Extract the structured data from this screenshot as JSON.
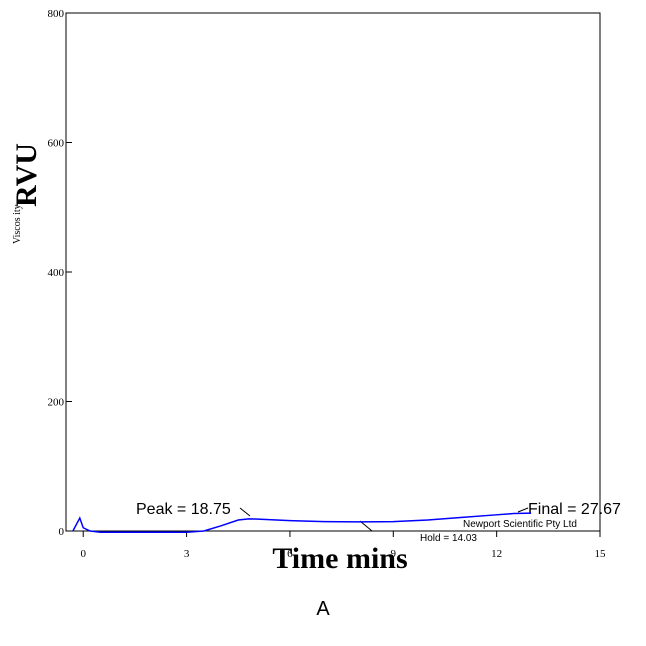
{
  "chart_data": {
    "type": "line",
    "y_label_small": "Viscos ity",
    "y_label": "RVU",
    "x_label": "Time mins",
    "caption": "A",
    "annotations": [
      "Peak = 18.75",
      "Final = 27.67",
      "Hold = 14.03",
      "Newport Scientific Pty Ltd"
    ],
    "x": [
      -0.3,
      -0.1,
      0,
      0.2,
      0.5,
      1,
      2,
      3,
      3.5,
      4,
      4.5,
      4.8,
      5,
      6,
      7,
      8,
      9,
      10,
      11,
      12,
      12.5,
      13
    ],
    "series": [
      {
        "name": "Viscosity",
        "color": "#0000ff",
        "values": [
          0,
          20,
          5,
          0,
          -2,
          -2,
          -2,
          -2,
          0,
          8,
          17,
          18.75,
          18.5,
          16,
          14.5,
          14.03,
          14.5,
          17,
          21,
          25,
          27,
          27.67
        ]
      }
    ],
    "xlim": [
      -0.5,
      15
    ],
    "ylim": [
      0,
      800
    ],
    "xticks": [
      0,
      3,
      6,
      9,
      12,
      15
    ],
    "yticks": [
      0,
      200,
      400,
      600,
      800
    ]
  }
}
